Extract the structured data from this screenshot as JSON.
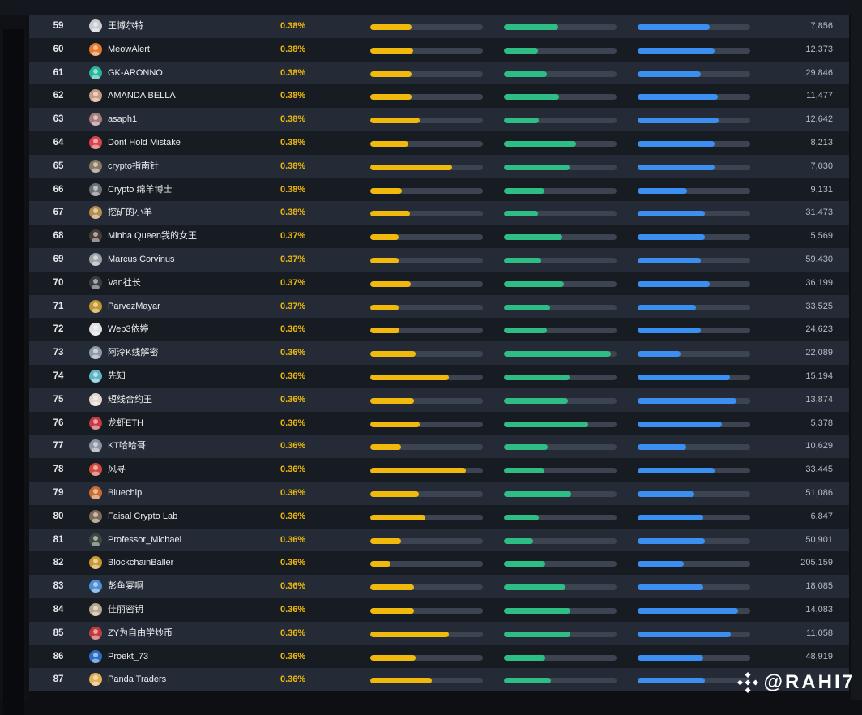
{
  "rows": [
    {
      "rank": "59",
      "name": "王博尔特",
      "pct": "0.38%",
      "bars": [
        0.37,
        0.48,
        0.64
      ],
      "count": "7,856",
      "avatar": "#c9cbd0"
    },
    {
      "rank": "60",
      "name": "MeowAlert",
      "pct": "0.38%",
      "bars": [
        0.38,
        0.3,
        0.68
      ],
      "count": "12,373",
      "avatar": "#e8792b"
    },
    {
      "rank": "61",
      "name": "GK-ARONNO",
      "pct": "0.38%",
      "bars": [
        0.37,
        0.38,
        0.56
      ],
      "count": "29,846",
      "avatar": "#27b39d"
    },
    {
      "rank": "62",
      "name": "AMANDA BELLA",
      "pct": "0.38%",
      "bars": [
        0.37,
        0.49,
        0.71
      ],
      "count": "11,477",
      "avatar": "#c99b83"
    },
    {
      "rank": "63",
      "name": "asaph1",
      "pct": "0.38%",
      "bars": [
        0.44,
        0.31,
        0.72
      ],
      "count": "12,642",
      "avatar": "#a77c7c"
    },
    {
      "rank": "64",
      "name": "Dont Hold Mistake",
      "pct": "0.38%",
      "bars": [
        0.34,
        0.64,
        0.68
      ],
      "count": "8,213",
      "avatar": "#d9434e"
    },
    {
      "rank": "65",
      "name": "crypto指南针",
      "pct": "0.38%",
      "bars": [
        0.73,
        0.58,
        0.68
      ],
      "count": "7,030",
      "avatar": "#8a7a63"
    },
    {
      "rank": "66",
      "name": "Crypto 绵羊博士",
      "pct": "0.38%",
      "bars": [
        0.28,
        0.36,
        0.44
      ],
      "count": "9,131",
      "avatar": "#6c6f75"
    },
    {
      "rank": "67",
      "name": "挖矿的小羊",
      "pct": "0.38%",
      "bars": [
        0.35,
        0.3,
        0.6
      ],
      "count": "31,473",
      "avatar": "#b58d4b"
    },
    {
      "rank": "68",
      "name": "Minha Queen我的女王",
      "pct": "0.37%",
      "bars": [
        0.25,
        0.52,
        0.6
      ],
      "count": "5,569",
      "avatar": "#4a3b35"
    },
    {
      "rank": "69",
      "name": "Marcus Corvinus",
      "pct": "0.37%",
      "bars": [
        0.25,
        0.33,
        0.56
      ],
      "count": "59,430",
      "avatar": "#9ea3aa"
    },
    {
      "rank": "70",
      "name": "Van社长",
      "pct": "0.37%",
      "bars": [
        0.36,
        0.53,
        0.64
      ],
      "count": "36,199",
      "avatar": "#3a3d44"
    },
    {
      "rank": "71",
      "name": "ParvezMayar",
      "pct": "0.37%",
      "bars": [
        0.25,
        0.41,
        0.52
      ],
      "count": "33,525",
      "avatar": "#c2952e"
    },
    {
      "rank": "72",
      "name": "Web3依婷",
      "pct": "0.36%",
      "bars": [
        0.26,
        0.38,
        0.56
      ],
      "count": "24,623",
      "avatar": "#dfe1e5"
    },
    {
      "rank": "73",
      "name": "阿泠K线解密",
      "pct": "0.36%",
      "bars": [
        0.4,
        0.95,
        0.38
      ],
      "count": "22,089",
      "avatar": "#8f9aa8"
    },
    {
      "rank": "74",
      "name": "先知",
      "pct": "0.36%",
      "bars": [
        0.7,
        0.58,
        0.82
      ],
      "count": "15,194",
      "avatar": "#5fb5c7"
    },
    {
      "rank": "75",
      "name": "短线合约王",
      "pct": "0.36%",
      "bars": [
        0.39,
        0.57,
        0.88
      ],
      "count": "13,874",
      "avatar": "#e3d7cf"
    },
    {
      "rank": "76",
      "name": "龙虾ETH",
      "pct": "0.36%",
      "bars": [
        0.44,
        0.75,
        0.75
      ],
      "count": "5,378",
      "avatar": "#c73a45"
    },
    {
      "rank": "77",
      "name": "KT哈哈哥",
      "pct": "0.36%",
      "bars": [
        0.27,
        0.39,
        0.43
      ],
      "count": "10,629",
      "avatar": "#8c95a3"
    },
    {
      "rank": "78",
      "name": "风寻",
      "pct": "0.36%",
      "bars": [
        0.85,
        0.36,
        0.68
      ],
      "count": "33,445",
      "avatar": "#d24a3e"
    },
    {
      "rank": "79",
      "name": "Bluechip",
      "pct": "0.36%",
      "bars": [
        0.43,
        0.6,
        0.5
      ],
      "count": "51,086",
      "avatar": "#c86d2f"
    },
    {
      "rank": "80",
      "name": "Faisal Crypto Lab",
      "pct": "0.36%",
      "bars": [
        0.49,
        0.31,
        0.58
      ],
      "count": "6,847",
      "avatar": "#7f6a55"
    },
    {
      "rank": "81",
      "name": "Professor_Michael",
      "pct": "0.36%",
      "bars": [
        0.27,
        0.26,
        0.6
      ],
      "count": "50,901",
      "avatar": "#3b4a3c"
    },
    {
      "rank": "82",
      "name": "BlockchainBaller",
      "pct": "0.36%",
      "bars": [
        0.18,
        0.37,
        0.41
      ],
      "count": "205,159",
      "avatar": "#c99830"
    },
    {
      "rank": "83",
      "name": "彭鱼宴啊",
      "pct": "0.36%",
      "bars": [
        0.39,
        0.55,
        0.58
      ],
      "count": "18,085",
      "avatar": "#4a8fd4"
    },
    {
      "rank": "84",
      "name": "佳丽密钥",
      "pct": "0.36%",
      "bars": [
        0.39,
        0.59,
        0.89
      ],
      "count": "14,083",
      "avatar": "#b8a58f"
    },
    {
      "rank": "85",
      "name": "ZY为自由学炒币",
      "pct": "0.36%",
      "bars": [
        0.7,
        0.59,
        0.83
      ],
      "count": "11,058",
      "avatar": "#c13b3b"
    },
    {
      "rank": "86",
      "name": "Proekt_73",
      "pct": "0.36%",
      "bars": [
        0.4,
        0.37,
        0.58
      ],
      "count": "48,919",
      "avatar": "#2b6cc4"
    },
    {
      "rank": "87",
      "name": "Panda Traders",
      "pct": "0.36%",
      "bars": [
        0.55,
        0.42,
        0.6
      ],
      "count": "",
      "avatar": "#e2b257"
    }
  ],
  "watermark": {
    "text": "@RAHI7",
    "icon": "binance-logo-icon"
  },
  "colors": {
    "pct": "#f0b90b",
    "bar_yellow": "#f0b90b",
    "bar_green": "#2ebd85",
    "bar_blue": "#3b8ff0",
    "track": "#3d4451",
    "row_light": "#242b36",
    "row_dark": "#171b22"
  }
}
